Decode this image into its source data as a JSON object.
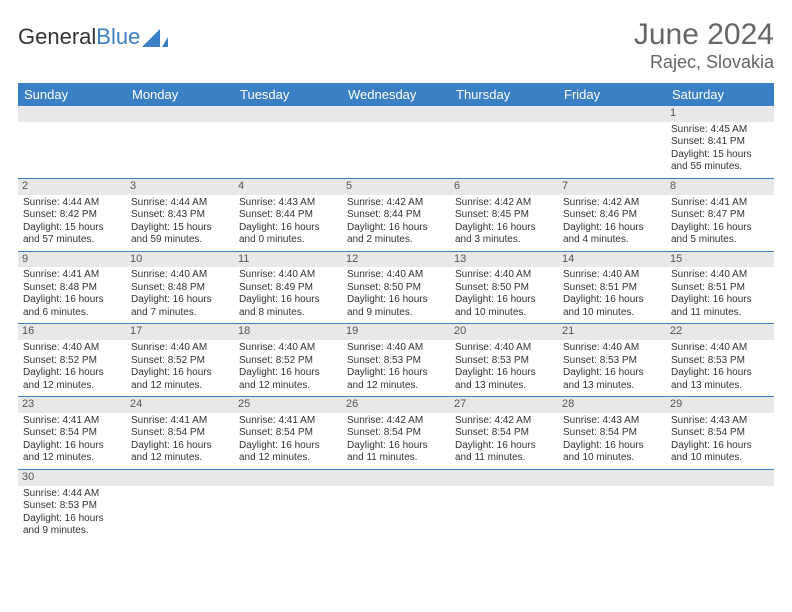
{
  "brand": {
    "part1": "General",
    "part2": "Blue"
  },
  "header": {
    "title": "June 2024",
    "location": "Rajec, Slovakia"
  },
  "colors": {
    "accent": "#3b7fc4",
    "header_bg": "#3b7fc4",
    "header_text": "#ffffff",
    "daynum_bg": "#e8e8e8",
    "text": "#333333",
    "muted": "#666666"
  },
  "weekdays": [
    "Sunday",
    "Monday",
    "Tuesday",
    "Wednesday",
    "Thursday",
    "Friday",
    "Saturday"
  ],
  "weeks": [
    [
      {
        "n": "",
        "sunrise": "",
        "sunset": "",
        "daylight": ""
      },
      {
        "n": "",
        "sunrise": "",
        "sunset": "",
        "daylight": ""
      },
      {
        "n": "",
        "sunrise": "",
        "sunset": "",
        "daylight": ""
      },
      {
        "n": "",
        "sunrise": "",
        "sunset": "",
        "daylight": ""
      },
      {
        "n": "",
        "sunrise": "",
        "sunset": "",
        "daylight": ""
      },
      {
        "n": "",
        "sunrise": "",
        "sunset": "",
        "daylight": ""
      },
      {
        "n": "1",
        "sunrise": "Sunrise: 4:45 AM",
        "sunset": "Sunset: 8:41 PM",
        "daylight": "Daylight: 15 hours and 55 minutes."
      }
    ],
    [
      {
        "n": "2",
        "sunrise": "Sunrise: 4:44 AM",
        "sunset": "Sunset: 8:42 PM",
        "daylight": "Daylight: 15 hours and 57 minutes."
      },
      {
        "n": "3",
        "sunrise": "Sunrise: 4:44 AM",
        "sunset": "Sunset: 8:43 PM",
        "daylight": "Daylight: 15 hours and 59 minutes."
      },
      {
        "n": "4",
        "sunrise": "Sunrise: 4:43 AM",
        "sunset": "Sunset: 8:44 PM",
        "daylight": "Daylight: 16 hours and 0 minutes."
      },
      {
        "n": "5",
        "sunrise": "Sunrise: 4:42 AM",
        "sunset": "Sunset: 8:44 PM",
        "daylight": "Daylight: 16 hours and 2 minutes."
      },
      {
        "n": "6",
        "sunrise": "Sunrise: 4:42 AM",
        "sunset": "Sunset: 8:45 PM",
        "daylight": "Daylight: 16 hours and 3 minutes."
      },
      {
        "n": "7",
        "sunrise": "Sunrise: 4:42 AM",
        "sunset": "Sunset: 8:46 PM",
        "daylight": "Daylight: 16 hours and 4 minutes."
      },
      {
        "n": "8",
        "sunrise": "Sunrise: 4:41 AM",
        "sunset": "Sunset: 8:47 PM",
        "daylight": "Daylight: 16 hours and 5 minutes."
      }
    ],
    [
      {
        "n": "9",
        "sunrise": "Sunrise: 4:41 AM",
        "sunset": "Sunset: 8:48 PM",
        "daylight": "Daylight: 16 hours and 6 minutes."
      },
      {
        "n": "10",
        "sunrise": "Sunrise: 4:40 AM",
        "sunset": "Sunset: 8:48 PM",
        "daylight": "Daylight: 16 hours and 7 minutes."
      },
      {
        "n": "11",
        "sunrise": "Sunrise: 4:40 AM",
        "sunset": "Sunset: 8:49 PM",
        "daylight": "Daylight: 16 hours and 8 minutes."
      },
      {
        "n": "12",
        "sunrise": "Sunrise: 4:40 AM",
        "sunset": "Sunset: 8:50 PM",
        "daylight": "Daylight: 16 hours and 9 minutes."
      },
      {
        "n": "13",
        "sunrise": "Sunrise: 4:40 AM",
        "sunset": "Sunset: 8:50 PM",
        "daylight": "Daylight: 16 hours and 10 minutes."
      },
      {
        "n": "14",
        "sunrise": "Sunrise: 4:40 AM",
        "sunset": "Sunset: 8:51 PM",
        "daylight": "Daylight: 16 hours and 10 minutes."
      },
      {
        "n": "15",
        "sunrise": "Sunrise: 4:40 AM",
        "sunset": "Sunset: 8:51 PM",
        "daylight": "Daylight: 16 hours and 11 minutes."
      }
    ],
    [
      {
        "n": "16",
        "sunrise": "Sunrise: 4:40 AM",
        "sunset": "Sunset: 8:52 PM",
        "daylight": "Daylight: 16 hours and 12 minutes."
      },
      {
        "n": "17",
        "sunrise": "Sunrise: 4:40 AM",
        "sunset": "Sunset: 8:52 PM",
        "daylight": "Daylight: 16 hours and 12 minutes."
      },
      {
        "n": "18",
        "sunrise": "Sunrise: 4:40 AM",
        "sunset": "Sunset: 8:52 PM",
        "daylight": "Daylight: 16 hours and 12 minutes."
      },
      {
        "n": "19",
        "sunrise": "Sunrise: 4:40 AM",
        "sunset": "Sunset: 8:53 PM",
        "daylight": "Daylight: 16 hours and 12 minutes."
      },
      {
        "n": "20",
        "sunrise": "Sunrise: 4:40 AM",
        "sunset": "Sunset: 8:53 PM",
        "daylight": "Daylight: 16 hours and 13 minutes."
      },
      {
        "n": "21",
        "sunrise": "Sunrise: 4:40 AM",
        "sunset": "Sunset: 8:53 PM",
        "daylight": "Daylight: 16 hours and 13 minutes."
      },
      {
        "n": "22",
        "sunrise": "Sunrise: 4:40 AM",
        "sunset": "Sunset: 8:53 PM",
        "daylight": "Daylight: 16 hours and 13 minutes."
      }
    ],
    [
      {
        "n": "23",
        "sunrise": "Sunrise: 4:41 AM",
        "sunset": "Sunset: 8:54 PM",
        "daylight": "Daylight: 16 hours and 12 minutes."
      },
      {
        "n": "24",
        "sunrise": "Sunrise: 4:41 AM",
        "sunset": "Sunset: 8:54 PM",
        "daylight": "Daylight: 16 hours and 12 minutes."
      },
      {
        "n": "25",
        "sunrise": "Sunrise: 4:41 AM",
        "sunset": "Sunset: 8:54 PM",
        "daylight": "Daylight: 16 hours and 12 minutes."
      },
      {
        "n": "26",
        "sunrise": "Sunrise: 4:42 AM",
        "sunset": "Sunset: 8:54 PM",
        "daylight": "Daylight: 16 hours and 11 minutes."
      },
      {
        "n": "27",
        "sunrise": "Sunrise: 4:42 AM",
        "sunset": "Sunset: 8:54 PM",
        "daylight": "Daylight: 16 hours and 11 minutes."
      },
      {
        "n": "28",
        "sunrise": "Sunrise: 4:43 AM",
        "sunset": "Sunset: 8:54 PM",
        "daylight": "Daylight: 16 hours and 10 minutes."
      },
      {
        "n": "29",
        "sunrise": "Sunrise: 4:43 AM",
        "sunset": "Sunset: 8:54 PM",
        "daylight": "Daylight: 16 hours and 10 minutes."
      }
    ],
    [
      {
        "n": "30",
        "sunrise": "Sunrise: 4:44 AM",
        "sunset": "Sunset: 8:53 PM",
        "daylight": "Daylight: 16 hours and 9 minutes."
      },
      {
        "n": "",
        "sunrise": "",
        "sunset": "",
        "daylight": ""
      },
      {
        "n": "",
        "sunrise": "",
        "sunset": "",
        "daylight": ""
      },
      {
        "n": "",
        "sunrise": "",
        "sunset": "",
        "daylight": ""
      },
      {
        "n": "",
        "sunrise": "",
        "sunset": "",
        "daylight": ""
      },
      {
        "n": "",
        "sunrise": "",
        "sunset": "",
        "daylight": ""
      },
      {
        "n": "",
        "sunrise": "",
        "sunset": "",
        "daylight": ""
      }
    ]
  ]
}
